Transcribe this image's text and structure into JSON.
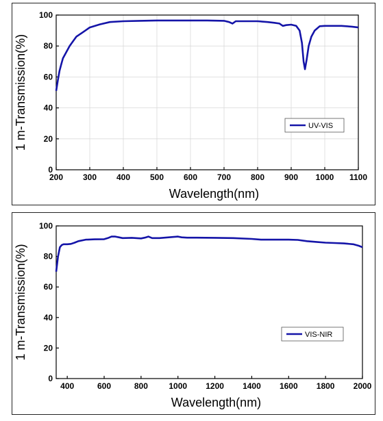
{
  "chart_data": [
    {
      "type": "line",
      "title": "",
      "xlabel": "Wavelength(nm)",
      "ylabel": "1 m-Transmission(%)",
      "xlim": [
        200,
        1100
      ],
      "ylim": [
        0,
        100
      ],
      "xticks": [
        200,
        300,
        400,
        500,
        600,
        700,
        800,
        900,
        1000,
        1100
      ],
      "yticks": [
        0,
        20,
        40,
        60,
        80,
        100
      ],
      "grid": true,
      "legend_position": "middle-right",
      "series": [
        {
          "name": "UV-VIS",
          "color": "#1414a8",
          "x": [
            200,
            205,
            210,
            215,
            220,
            230,
            240,
            250,
            260,
            280,
            300,
            330,
            360,
            400,
            450,
            500,
            550,
            600,
            650,
            700,
            715,
            725,
            735,
            760,
            800,
            830,
            850,
            865,
            875,
            885,
            900,
            915,
            925,
            932,
            937,
            941,
            946,
            952,
            960,
            970,
            985,
            1000,
            1050,
            1080,
            1100
          ],
          "y": [
            51,
            58,
            64,
            68,
            72,
            76,
            80,
            83,
            86,
            89,
            92,
            94,
            95.5,
            96,
            96.3,
            96.5,
            96.5,
            96.5,
            96.5,
            96.3,
            95.5,
            94.5,
            96,
            96,
            96,
            95.5,
            95,
            94.5,
            93,
            93.5,
            93.8,
            93,
            90,
            82,
            70,
            65,
            71,
            80,
            86,
            90,
            92.8,
            93,
            93,
            92.5,
            92
          ]
        }
      ]
    },
    {
      "type": "line",
      "title": "",
      "xlabel": "Wavelength(nm)",
      "ylabel": "1 m-Transmission(%)",
      "xlim": [
        340,
        2000
      ],
      "ylim": [
        0,
        100
      ],
      "xticks": [
        400,
        600,
        800,
        1000,
        1200,
        1400,
        1600,
        1800,
        2000
      ],
      "yticks": [
        0,
        20,
        40,
        60,
        80,
        100
      ],
      "grid": false,
      "legend_position": "middle-right",
      "series": [
        {
          "name": "VIS-NIR",
          "color": "#1414a8",
          "x": [
            340,
            350,
            360,
            370,
            380,
            400,
            420,
            440,
            460,
            500,
            550,
            600,
            620,
            640,
            660,
            680,
            700,
            750,
            800,
            820,
            840,
            860,
            900,
            950,
            1000,
            1020,
            1050,
            1100,
            1200,
            1300,
            1400,
            1450,
            1500,
            1600,
            1650,
            1700,
            1750,
            1800,
            1850,
            1900,
            1950,
            1980,
            2000
          ],
          "y": [
            70,
            80,
            86,
            87.5,
            88,
            88,
            88.2,
            89,
            90,
            91,
            91.2,
            91.3,
            92,
            93,
            93,
            92.5,
            92,
            92.2,
            91.8,
            92.3,
            93,
            92,
            92,
            92.5,
            93,
            92.5,
            92.3,
            92.3,
            92.2,
            92,
            91.5,
            91,
            91,
            91,
            90.8,
            90,
            89.5,
            89,
            88.8,
            88.5,
            88,
            87,
            86
          ]
        }
      ]
    }
  ]
}
